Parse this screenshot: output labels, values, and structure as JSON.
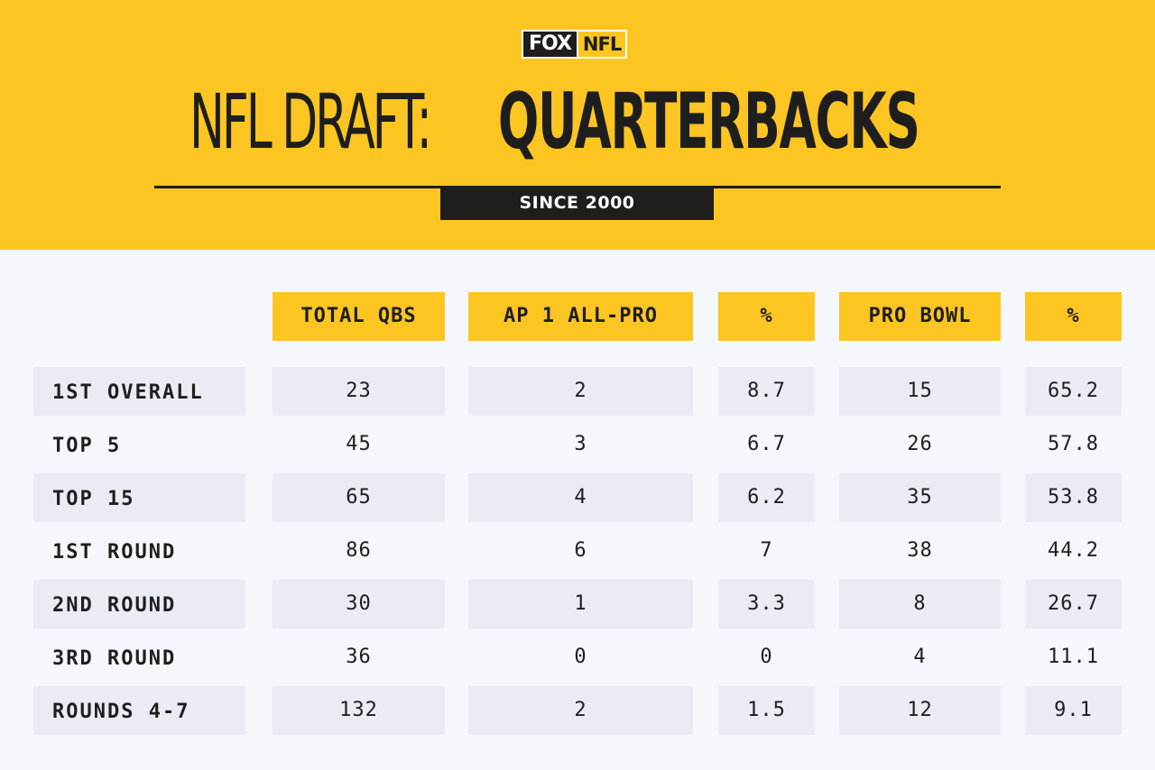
{
  "header": {
    "logo_fox": "FOX",
    "logo_nfl": "NFL",
    "title_light": "NFL DRAFT:",
    "title_bold": "QUARTERBACKS",
    "subtitle": "SINCE 2000"
  },
  "colors": {
    "accent_yellow": "#fcc522",
    "dark": "#1e1e1e",
    "background": "#f4f7fb",
    "row_shade": "#e9ecf3"
  },
  "chart_data": {
    "type": "table",
    "title": "NFL DRAFT: QUARTERBACKS",
    "subtitle": "SINCE 2000",
    "columns": [
      "TOTAL QBS",
      "AP 1 ALL-PRO",
      "%",
      "PRO BOWL",
      "%"
    ],
    "rows": [
      {
        "label": "1ST OVERALL",
        "values": [
          "23",
          "2",
          "8.7",
          "15",
          "65.2"
        ]
      },
      {
        "label": "TOP 5",
        "values": [
          "45",
          "3",
          "6.7",
          "26",
          "57.8"
        ]
      },
      {
        "label": "TOP 15",
        "values": [
          "65",
          "4",
          "6.2",
          "35",
          "53.8"
        ]
      },
      {
        "label": "1ST ROUND",
        "values": [
          "86",
          "6",
          "7",
          "38",
          "44.2"
        ]
      },
      {
        "label": "2ND ROUND",
        "values": [
          "30",
          "1",
          "3.3",
          "8",
          "26.7"
        ]
      },
      {
        "label": "3RD ROUND",
        "values": [
          "36",
          "0",
          "0",
          "4",
          "11.1"
        ]
      },
      {
        "label": "ROUNDS 4-7",
        "values": [
          "132",
          "2",
          "1.5",
          "12",
          "9.1"
        ]
      }
    ]
  }
}
